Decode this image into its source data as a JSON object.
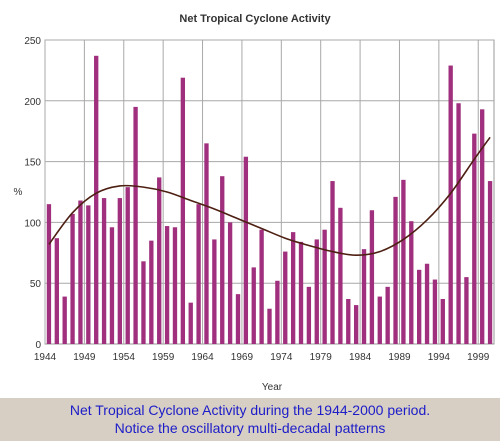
{
  "chart_data": {
    "type": "bar",
    "title": "Net Tropical Cyclone Activity",
    "xlabel": "Year",
    "ylabel": "%",
    "ylim": [
      0,
      250
    ],
    "yticks": [
      0,
      50,
      100,
      150,
      200,
      250
    ],
    "xticks": [
      1944,
      1949,
      1954,
      1959,
      1964,
      1969,
      1974,
      1979,
      1984,
      1989,
      1994,
      1999
    ],
    "grid": true,
    "legend": "none",
    "bar_color": "#a0307e",
    "trend_color": "#4d1f12",
    "categories": [
      1944,
      1945,
      1946,
      1947,
      1948,
      1949,
      1950,
      1951,
      1952,
      1953,
      1954,
      1955,
      1956,
      1957,
      1958,
      1959,
      1960,
      1961,
      1962,
      1963,
      1964,
      1965,
      1966,
      1967,
      1968,
      1969,
      1970,
      1971,
      1972,
      1973,
      1974,
      1975,
      1976,
      1977,
      1978,
      1979,
      1980,
      1981,
      1982,
      1983,
      1984,
      1985,
      1986,
      1987,
      1988,
      1989,
      1990,
      1991,
      1992,
      1993,
      1994,
      1995,
      1996,
      1997,
      1998,
      1999,
      2000
    ],
    "values": [
      115,
      87,
      39,
      107,
      118,
      114,
      237,
      120,
      96,
      120,
      129,
      195,
      68,
      85,
      137,
      97,
      96,
      219,
      34,
      115,
      165,
      86,
      138,
      100,
      41,
      154,
      63,
      94,
      29,
      52,
      76,
      92,
      84,
      47,
      86,
      94,
      134,
      112,
      37,
      32,
      78,
      110,
      39,
      47,
      121,
      135,
      101,
      61,
      66,
      53,
      37,
      229,
      198,
      55,
      173,
      193,
      134
    ],
    "trend": {
      "years": [
        1944,
        1947,
        1950,
        1953,
        1956,
        1959,
        1962,
        1965,
        1968,
        1971,
        1974,
        1977,
        1980,
        1983,
        1986,
        1989,
        1992,
        1995,
        1998,
        2000
      ],
      "values": [
        82,
        108,
        124,
        130,
        129,
        125,
        118,
        111,
        103,
        95,
        87,
        81,
        76,
        73,
        76,
        86,
        102,
        124,
        152,
        170
      ]
    }
  },
  "caption": {
    "line1": "Net Tropical Cyclone Activity during the 1944-2000 period.",
    "line2": "Notice the oscillatory multi-decadal patterns"
  }
}
